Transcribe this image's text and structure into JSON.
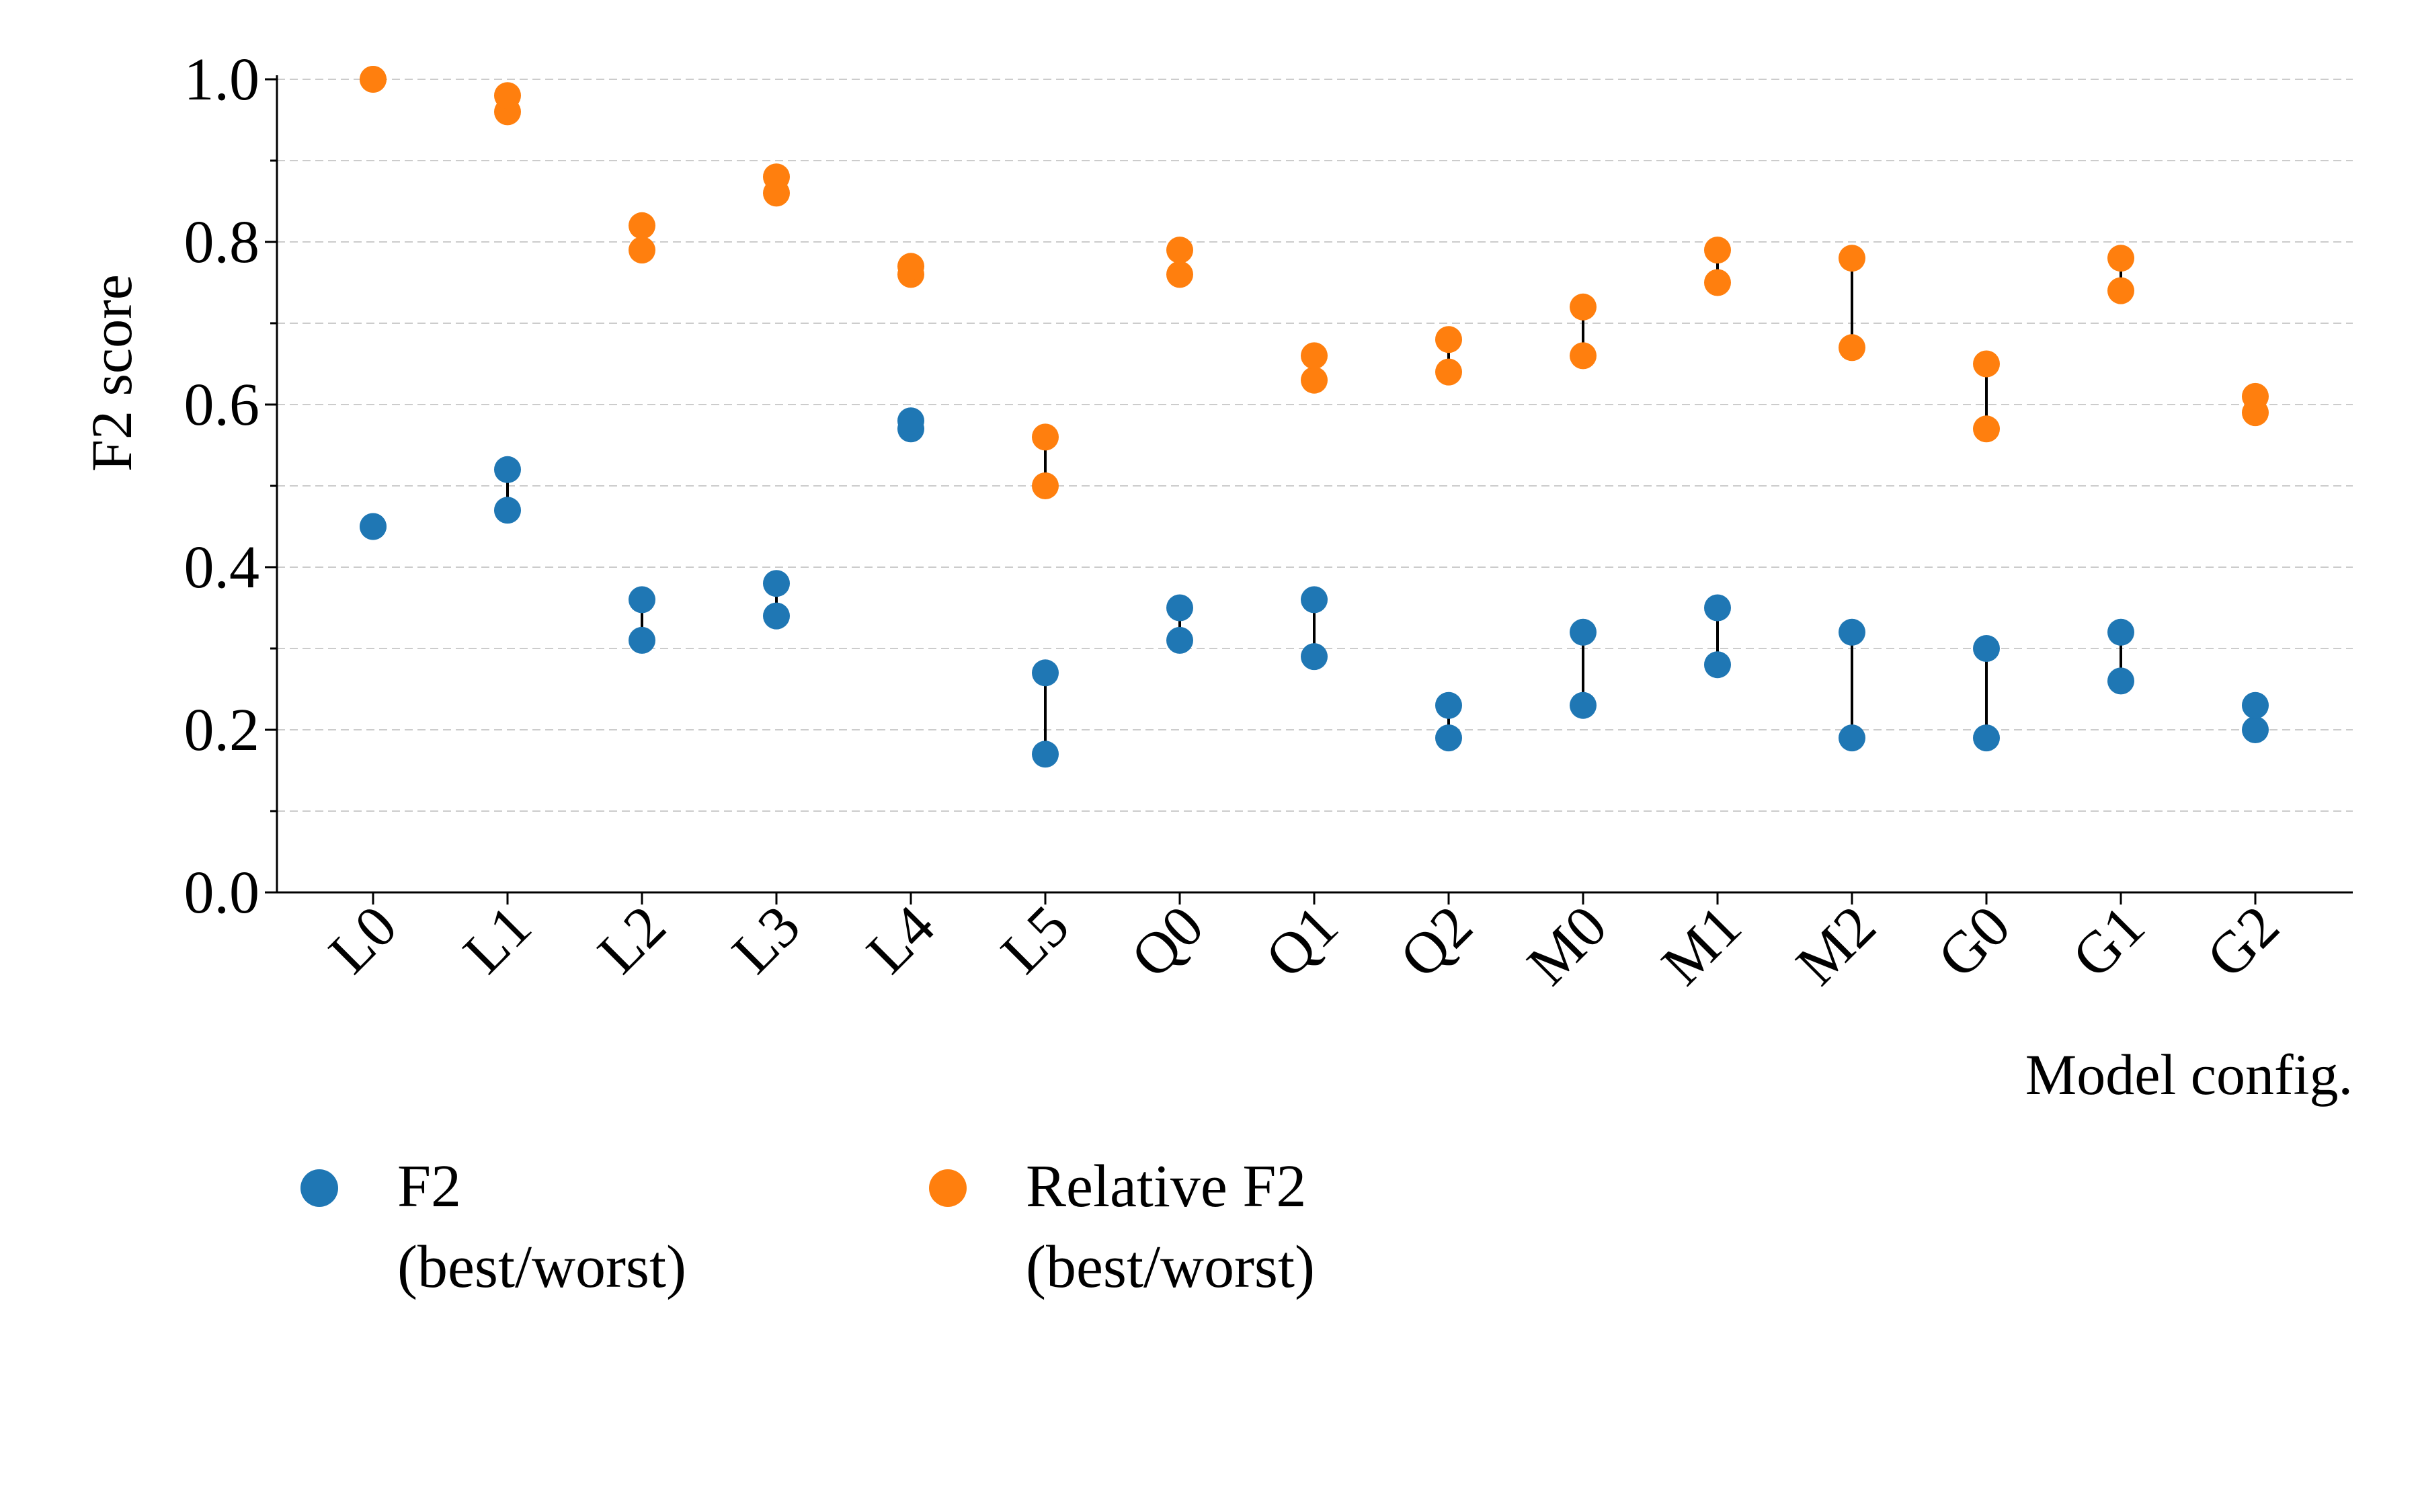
{
  "chart_data": {
    "type": "scatter",
    "title": "",
    "xlabel": "Model config.",
    "ylabel": "F2 score",
    "ylim": [
      0.0,
      1.0
    ],
    "yticks": [
      "0.0",
      "0.2",
      "0.4",
      "0.6",
      "0.8",
      "1.0"
    ],
    "grid": true,
    "legend_position": "below",
    "categories": [
      "L0",
      "L1",
      "L2",
      "L3",
      "L4",
      "L5",
      "Q0",
      "Q1",
      "Q2",
      "M0",
      "M1",
      "M2",
      "G0",
      "G1",
      "G2"
    ],
    "series": [
      {
        "name": "F2\n(best/worst)",
        "color": "#1f77b4",
        "best": [
          0.45,
          0.52,
          0.36,
          0.38,
          0.58,
          0.27,
          0.35,
          0.36,
          0.23,
          0.32,
          0.35,
          0.32,
          0.3,
          0.32,
          0.23
        ],
        "worst": [
          0.45,
          0.47,
          0.31,
          0.34,
          0.57,
          0.17,
          0.31,
          0.29,
          0.19,
          0.23,
          0.28,
          0.19,
          0.19,
          0.26,
          0.2
        ]
      },
      {
        "name": "Relative F2\n(best/worst)",
        "color": "#ff7f0e",
        "best": [
          1.0,
          0.98,
          0.82,
          0.88,
          0.77,
          0.56,
          0.79,
          0.66,
          0.68,
          0.72,
          0.79,
          0.78,
          0.65,
          0.78,
          0.61
        ],
        "worst": [
          1.0,
          0.96,
          0.79,
          0.86,
          0.76,
          0.5,
          0.76,
          0.63,
          0.64,
          0.66,
          0.75,
          0.67,
          0.57,
          0.74,
          0.59
        ]
      }
    ]
  }
}
